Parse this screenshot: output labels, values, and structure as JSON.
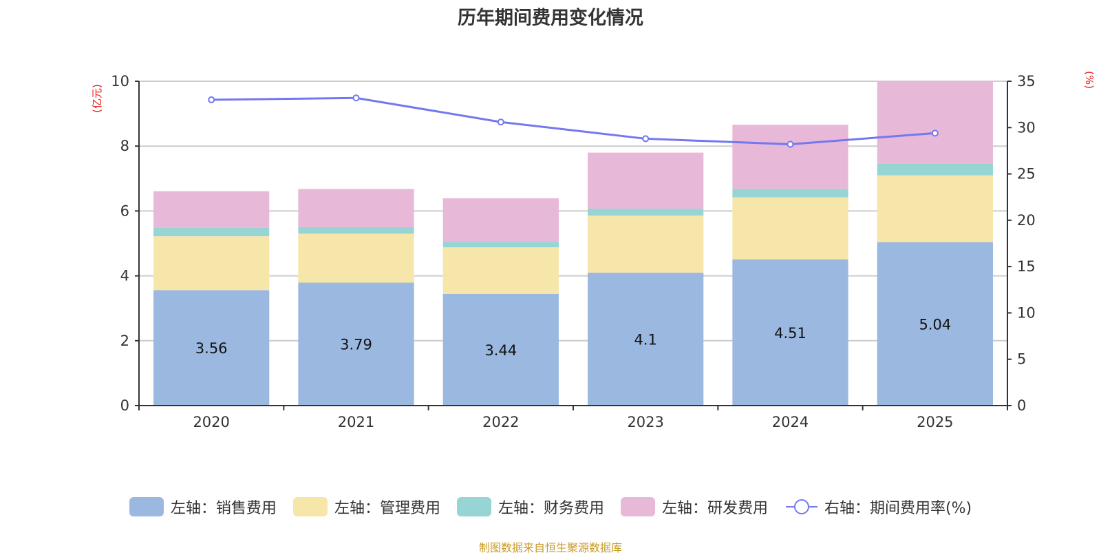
{
  "chart_data": {
    "type": "bar",
    "stacked": true,
    "title": "历年期间费用变化情况",
    "categories": [
      "2020",
      "2021",
      "2022",
      "2023",
      "2024",
      "2025"
    ],
    "left_axis": {
      "unit_label": "(亿元)",
      "ylim": [
        0,
        10
      ],
      "ticks": [
        0,
        2,
        4,
        6,
        8,
        10
      ]
    },
    "right_axis": {
      "unit_label": "(%)",
      "ylim": [
        0,
        35
      ],
      "ticks": [
        0,
        5,
        10,
        15,
        20,
        25,
        30,
        35
      ]
    },
    "grid": true,
    "series": [
      {
        "name": "左轴：销售费用",
        "axis": "left",
        "type": "bar",
        "color": "#9bb8e0",
        "values": [
          3.56,
          3.79,
          3.44,
          4.1,
          4.51,
          5.04
        ],
        "show_labels": true,
        "labels": [
          "3.56",
          "3.79",
          "3.44",
          "4.1",
          "4.51",
          "5.04"
        ]
      },
      {
        "name": "左轴：管理费用",
        "axis": "left",
        "type": "bar",
        "color": "#f7e6a9",
        "values": [
          1.66,
          1.51,
          1.44,
          1.76,
          1.91,
          2.06
        ]
      },
      {
        "name": "左轴：财务费用",
        "axis": "left",
        "type": "bar",
        "color": "#97d4d4",
        "values": [
          0.26,
          0.2,
          0.17,
          0.21,
          0.26,
          0.36
        ]
      },
      {
        "name": "左轴：研发费用",
        "axis": "left",
        "type": "bar",
        "color": "#e7b8d7",
        "values": [
          1.13,
          1.18,
          1.34,
          1.73,
          1.98,
          2.54
        ]
      },
      {
        "name": "右轴：期间费用率(%)",
        "axis": "right",
        "type": "line",
        "color": "#7478f0",
        "values": [
          33.0,
          33.2,
          30.6,
          28.8,
          28.2,
          29.4
        ]
      }
    ],
    "legend_position": "bottom",
    "source_note": "制图数据来自恒生聚源数据库"
  },
  "colors": {
    "axis_unit": "#ee1111",
    "footer": "#c89a2a",
    "grid": "#cccccc",
    "axis": "#333333"
  }
}
